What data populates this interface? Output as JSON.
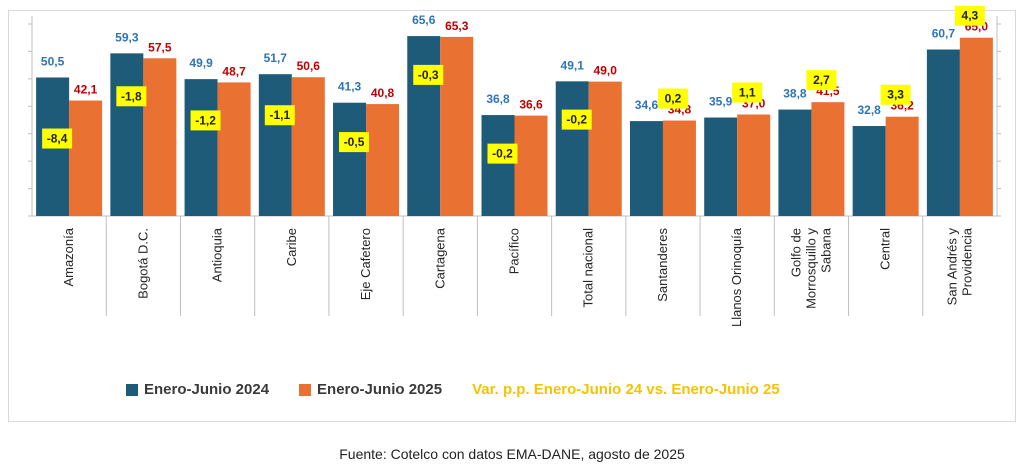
{
  "colors": {
    "series_2024": "#1d5b79",
    "series_2025": "#e97132",
    "label_2024": "#2e75b6",
    "label_2025": "#c00000",
    "var_box": "#ffff00",
    "var_text": "#222222",
    "var_legend": "#f5c400"
  },
  "legend": {
    "series_2024": "Enero-Junio 2024",
    "series_2025": "Enero-Junio 2025",
    "variation": "Var. p.p.  Enero-Junio 24 vs. Enero-Junio 25"
  },
  "source": "Fuente: Cotelco con datos EMA-DANE, agosto de 2025",
  "chart_data": {
    "type": "bar",
    "title": "",
    "xlabel": "",
    "ylabel": "",
    "ylim": [
      0,
      70
    ],
    "grid": false,
    "legend_position": "bottom",
    "categories": [
      [
        "Amazonía"
      ],
      [
        "Bogotá D.C."
      ],
      [
        "Antioquia"
      ],
      [
        "Caribe"
      ],
      [
        "Eje Cafetero"
      ],
      [
        "Cartagena"
      ],
      [
        "Pacífico"
      ],
      [
        "Total nacional"
      ],
      [
        "Santanderes"
      ],
      [
        "Llanos Orinoquía"
      ],
      [
        "Golfo de",
        "Morrosquillo y",
        "Sabana"
      ],
      [
        "Central"
      ],
      [
        "San Andrés y",
        "Providencia"
      ]
    ],
    "series": [
      {
        "name": "Enero-Junio 2024",
        "values": [
          50.5,
          59.3,
          49.9,
          51.7,
          41.3,
          65.6,
          36.8,
          49.1,
          34.6,
          35.9,
          38.8,
          32.8,
          60.7
        ],
        "labels": [
          "50,5",
          "59,3",
          "49,9",
          "51,7",
          "41,3",
          "65,6",
          "36,8",
          "49,1",
          "34,6",
          "35,9",
          "38,8",
          "32,8",
          "60,7"
        ]
      },
      {
        "name": "Enero-Junio 2025",
        "values": [
          42.1,
          57.5,
          48.7,
          50.6,
          40.8,
          65.3,
          36.6,
          49.0,
          34.8,
          37.0,
          41.5,
          36.2,
          65.0
        ],
        "labels": [
          "42,1",
          "57,5",
          "48,7",
          "50,6",
          "40,8",
          "65,3",
          "36,6",
          "49,0",
          "34,8",
          "37,0",
          "41,5",
          "36,2",
          "65,0"
        ]
      }
    ],
    "variation": {
      "name": "Var. p.p.  Enero-Junio 24 vs. Enero-Junio 25",
      "values": [
        -8.4,
        -1.8,
        -1.2,
        -1.1,
        -0.5,
        -0.3,
        -0.2,
        -0.2,
        0.2,
        1.1,
        2.7,
        3.3,
        4.3
      ],
      "labels": [
        "-8,4",
        "-1,8",
        "-1,2",
        "-1,1",
        "-0,5",
        "-0,3",
        "-0,2",
        "-0,2",
        "0,2",
        "1,1",
        "2,7",
        "3,3",
        "4,3"
      ]
    }
  }
}
